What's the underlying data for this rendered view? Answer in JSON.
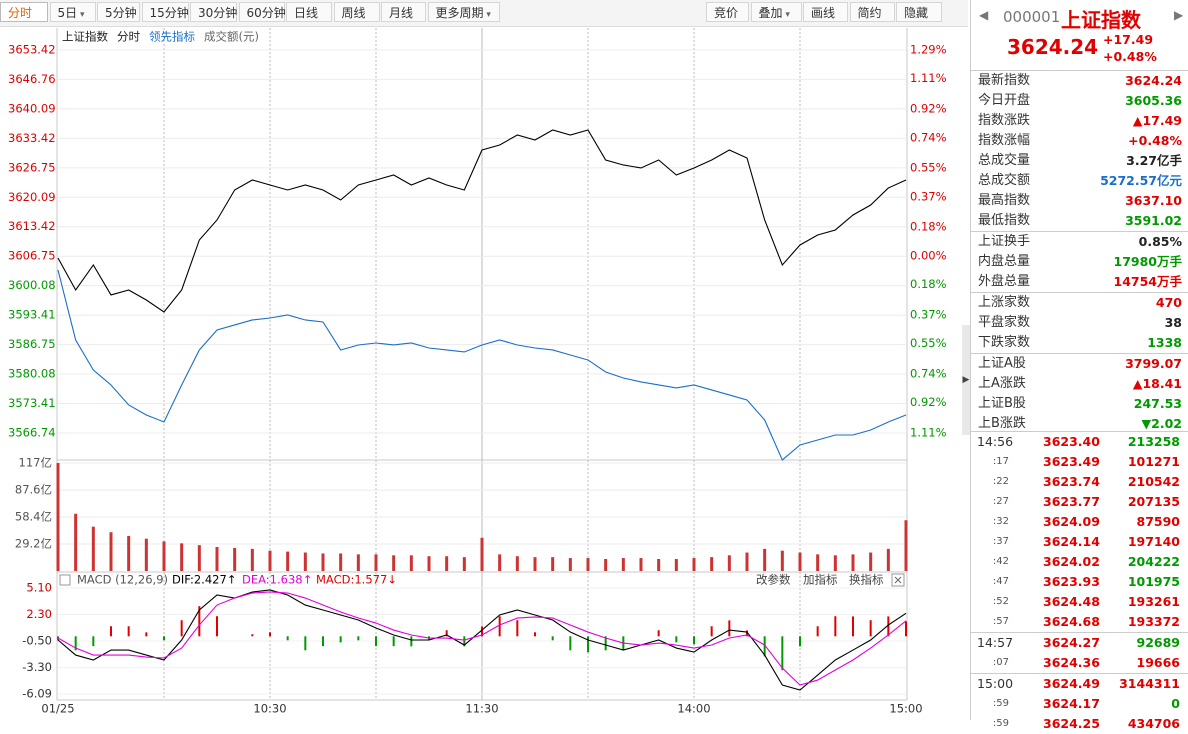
{
  "toolbar": {
    "left": [
      "分时",
      "5日",
      "5分钟",
      "15分钟",
      "30分钟",
      "60分钟",
      "日线",
      "周线",
      "月线",
      "更多周期"
    ],
    "left_dropdown": [
      false,
      true,
      false,
      false,
      false,
      false,
      false,
      false,
      false,
      true
    ],
    "right": [
      "竞价",
      "叠加",
      "画线",
      "简约",
      "隐藏"
    ],
    "right_dropdown": [
      false,
      true,
      false,
      false,
      false
    ]
  },
  "price_chart": {
    "type": "line",
    "legend": [
      "上证指数",
      "分时",
      "领先指标",
      "成交额(元)"
    ],
    "ylim": [
      3566.74,
      3653.42
    ],
    "yticks": [
      3653.42,
      3646.76,
      3640.09,
      3633.42,
      3626.75,
      3620.09,
      3613.42,
      3606.75,
      3600.08,
      3593.41,
      3586.75,
      3580.08,
      3573.41,
      3566.74
    ],
    "pct_lim": [
      -1.11,
      1.29
    ],
    "pct_ticks": [
      {
        "value": 1.29,
        "label": "1.29%"
      },
      {
        "value": 1.11,
        "label": "1.11%"
      },
      {
        "value": 0.92,
        "label": "0.92%"
      },
      {
        "value": 0.74,
        "label": "0.74%"
      },
      {
        "value": 0.55,
        "label": "0.55%"
      },
      {
        "value": 0.37,
        "label": "0.37%"
      },
      {
        "value": 0.18,
        "label": "0.18%"
      },
      {
        "value": 0,
        "label": "0.00%"
      },
      {
        "value": -0.18,
        "label": "0.18%"
      },
      {
        "value": -0.37,
        "label": "0.37%"
      },
      {
        "value": -0.55,
        "label": "0.55%"
      },
      {
        "value": -0.74,
        "label": "0.74%"
      },
      {
        "value": -0.92,
        "label": "0.92%"
      },
      {
        "value": -1.11,
        "label": "1.11%"
      }
    ],
    "xlim": [
      0,
      240
    ],
    "xticks": [
      {
        "value": 0,
        "label": "01/25"
      },
      {
        "value": 60,
        "label": "10:30"
      },
      {
        "value": 120,
        "label": "11:30"
      },
      {
        "value": 180,
        "label": "14:00"
      },
      {
        "value": 240,
        "label": "15:00"
      }
    ],
    "up_color": "#e00000",
    "down_color": "#009900",
    "series": [
      {
        "name": "上证指数",
        "color": "#000000",
        "values": [
          3606.35,
          3599.11,
          3604.77,
          3597.98,
          3599.11,
          3596.84,
          3594.13,
          3599.11,
          3610.42,
          3614.95,
          3621.74,
          3624.0,
          3622.87,
          3621.74,
          3622.87,
          3621.74,
          3619.47,
          3622.87,
          3624.0,
          3625.13,
          3622.87,
          3624.45,
          3622.87,
          3621.74,
          3630.79,
          3631.92,
          3634.18,
          3633.05,
          3635.32,
          3634.18,
          3635.32,
          3628.53,
          3627.4,
          3626.72,
          3628.53,
          3625.13,
          3626.72,
          3628.53,
          3630.79,
          3628.98,
          3614.95,
          3604.77,
          3609.29,
          3611.55,
          3612.69,
          3616.08,
          3618.34,
          3622.19,
          3624.0
        ]
      },
      {
        "name": "领先指标",
        "color": "#1a6fc9",
        "values": [
          3603.63,
          3587.79,
          3581.0,
          3577.61,
          3573.08,
          3570.82,
          3569.24,
          3577.61,
          3585.53,
          3590.06,
          3591.19,
          3592.32,
          3592.77,
          3593.45,
          3592.32,
          3591.87,
          3585.53,
          3586.66,
          3587.11,
          3586.66,
          3587.11,
          3585.98,
          3585.53,
          3585.08,
          3586.66,
          3587.79,
          3586.66,
          3585.98,
          3585.53,
          3584.4,
          3583.27,
          3580.55,
          3579.19,
          3578.29,
          3577.61,
          3576.93,
          3577.61,
          3576.48,
          3575.35,
          3574.21,
          3569.69,
          3560.64,
          3564.03,
          3565.16,
          3566.29,
          3566.29,
          3567.42,
          3569.24,
          3570.82
        ]
      }
    ]
  },
  "volume": {
    "ylim": [
      0,
      117
    ],
    "yticks": [
      {
        "value": 117,
        "label": "117亿"
      },
      {
        "value": 87.6,
        "label": "87.6亿"
      },
      {
        "value": 58.4,
        "label": "58.4亿"
      },
      {
        "value": 29.2,
        "label": "29.2亿"
      }
    ],
    "color": "#cc3333",
    "values": [
      117,
      62,
      48,
      42,
      38,
      35,
      32,
      30,
      28,
      26,
      25,
      24,
      22,
      21,
      20,
      19,
      19,
      18,
      18,
      17,
      17,
      16,
      16,
      15,
      36,
      18,
      16,
      15,
      15,
      14,
      14,
      13,
      14,
      14,
      13,
      13,
      14,
      15,
      17,
      20,
      24,
      22,
      20,
      18,
      17,
      18,
      20,
      24,
      55
    ]
  },
  "macd": {
    "title": "MACD (12,26,9)",
    "dif_label": "DIF:2.427↑",
    "dea_label": "DEA:1.638↑",
    "macd_label": "MACD:1.577↓",
    "actions": [
      "改参数",
      "加指标",
      "换指标"
    ],
    "ylim": [
      -6.09,
      5.1
    ],
    "yticks": [
      {
        "value": 5.1,
        "label": "5.10"
      },
      {
        "value": 2.3,
        "label": "2.30"
      },
      {
        "value": -0.5,
        "label": "-0.50"
      },
      {
        "value": -3.3,
        "label": "-3.30"
      },
      -6.09
    ],
    "dif": {
      "color": "#000000",
      "values": [
        -0.39,
        -1.98,
        -2.5,
        -1.45,
        -1.45,
        -1.98,
        -2.5,
        -0.39,
        2.78,
        4.36,
        4.04,
        4.68,
        4.89,
        4.36,
        3.3,
        2.78,
        2.25,
        1.72,
        0.88,
        0.14,
        -0.39,
        -0.39,
        0.14,
        -0.92,
        0.66,
        2.25,
        2.78,
        2.25,
        1.72,
        0.45,
        -0.39,
        -0.92,
        -1.45,
        -0.92,
        -0.39,
        -1.24,
        -1.66,
        -0.39,
        0.66,
        0.45,
        -1.98,
        -5.14,
        -5.67,
        -4.09,
        -2.5,
        -1.45,
        -0.39,
        1.19,
        2.43
      ]
    },
    "dea": {
      "color": "#e000e0",
      "values": [
        -0.18,
        -1.24,
        -1.98,
        -1.98,
        -1.98,
        -2.19,
        -2.29,
        -1.24,
        1.19,
        3.3,
        4.04,
        4.57,
        4.68,
        4.57,
        4.04,
        3.3,
        2.57,
        1.93,
        1.4,
        0.66,
        0.14,
        -0.18,
        -0.18,
        -0.39,
        0.14,
        1.19,
        1.93,
        2.04,
        1.93,
        1.19,
        0.45,
        -0.18,
        -0.71,
        -0.92,
        -0.71,
        -0.92,
        -1.24,
        -0.92,
        -0.18,
        0.14,
        -0.92,
        -3.35,
        -5.14,
        -4.62,
        -3.56,
        -2.5,
        -1.24,
        0.14,
        1.64
      ]
    },
    "hist": {
      "up_color": "#e00000",
      "down_color": "#009900",
      "values": [
        -0.42,
        -1.48,
        -1.04,
        1.06,
        1.06,
        0.42,
        -0.42,
        1.7,
        3.18,
        2.12,
        0,
        0.22,
        0.42,
        -0.42,
        -1.48,
        -1.04,
        -0.64,
        -0.42,
        -1.04,
        -1.04,
        -1.06,
        -0.42,
        0.64,
        -1.06,
        1.04,
        2.12,
        1.7,
        0.42,
        -0.42,
        -1.48,
        -1.68,
        -1.48,
        -1.48,
        0,
        0.64,
        -0.64,
        -0.84,
        1.06,
        1.68,
        0.62,
        -2.12,
        -3.58,
        -1.06,
        1.06,
        2.12,
        2.1,
        1.7,
        2.1,
        1.58
      ]
    }
  },
  "quote": {
    "code": "000001",
    "name": "上证指数",
    "price": "3624.24",
    "change": "+17.49",
    "pct": "+0.48%"
  },
  "stat_groups": [
    [
      {
        "label": "最新指数",
        "value": "3624.24",
        "color": "#e00000"
      },
      {
        "label": "今日开盘",
        "value": "3605.36",
        "color": "#009900"
      },
      {
        "label": "指数涨跌",
        "value": "▲17.49",
        "color": "#e00000"
      },
      {
        "label": "指数涨幅",
        "value": "+0.48%",
        "color": "#e00000"
      },
      {
        "label": "总成交量",
        "value": "3.27亿手",
        "color": "#222222"
      },
      {
        "label": "总成交额",
        "value": "5272.57亿元",
        "color": "#1a6fc9"
      },
      {
        "label": "最高指数",
        "value": "3637.10",
        "color": "#e00000"
      },
      {
        "label": "最低指数",
        "value": "3591.02",
        "color": "#009900"
      }
    ],
    [
      {
        "label": "上证换手",
        "value": "0.85%",
        "color": "#222222"
      },
      {
        "label": "内盘总量",
        "value": "17980万手",
        "color": "#009900"
      },
      {
        "label": "外盘总量",
        "value": "14754万手",
        "color": "#e00000"
      }
    ],
    [
      {
        "label": "上涨家数",
        "value": "470",
        "color": "#e00000"
      },
      {
        "label": "平盘家数",
        "value": "38",
        "color": "#222222"
      },
      {
        "label": "下跌家数",
        "value": "1338",
        "color": "#009900"
      }
    ],
    [
      {
        "label": "上证A股",
        "value": "3799.07",
        "color": "#e00000"
      },
      {
        "label": "上A涨跌",
        "value": "▲18.41",
        "color": "#e00000"
      },
      {
        "label": "上证B股",
        "value": "247.53",
        "color": "#009900"
      },
      {
        "label": "上B涨跌",
        "value": "▼2.02",
        "color": "#009900"
      }
    ]
  ],
  "trades": [
    [
      {
        "time": "14:56",
        "price": "3623.40",
        "volume": 213258,
        "color": "#009900"
      },
      {
        "time": ":17",
        "price": "3623.49",
        "volume": 101271,
        "color": "#e00000"
      },
      {
        "time": ":22",
        "price": "3623.74",
        "volume": 210542,
        "color": "#e00000"
      },
      {
        "time": ":27",
        "price": "3623.77",
        "volume": 207135,
        "color": "#e00000"
      },
      {
        "time": ":32",
        "price": "3624.09",
        "volume": 87590,
        "color": "#e00000"
      },
      {
        "time": ":37",
        "price": "3624.14",
        "volume": 197140,
        "color": "#e00000"
      },
      {
        "time": ":42",
        "price": "3624.02",
        "volume": 204222,
        "color": "#009900"
      },
      {
        "time": ":47",
        "price": "3623.93",
        "volume": 101975,
        "color": "#009900"
      },
      {
        "time": ":52",
        "price": "3624.48",
        "volume": 193261,
        "color": "#e00000"
      },
      {
        "time": ":57",
        "price": "3624.68",
        "volume": 193372,
        "color": "#e00000"
      }
    ],
    [
      {
        "time": "14:57",
        "price": "3624.27",
        "volume": 92689,
        "color": "#009900"
      },
      {
        "time": ":07",
        "price": "3624.36",
        "volume": 19666,
        "color": "#e00000"
      }
    ],
    [
      {
        "time": "15:00",
        "price": "3624.49",
        "volume": 3144311,
        "color": "#e00000"
      },
      {
        "time": ":59",
        "price": "3624.17",
        "volume": 0,
        "color": "#009900"
      },
      {
        "time": ":59",
        "price": "3624.25",
        "volume": 434706,
        "color": "#e00000"
      }
    ]
  ]
}
